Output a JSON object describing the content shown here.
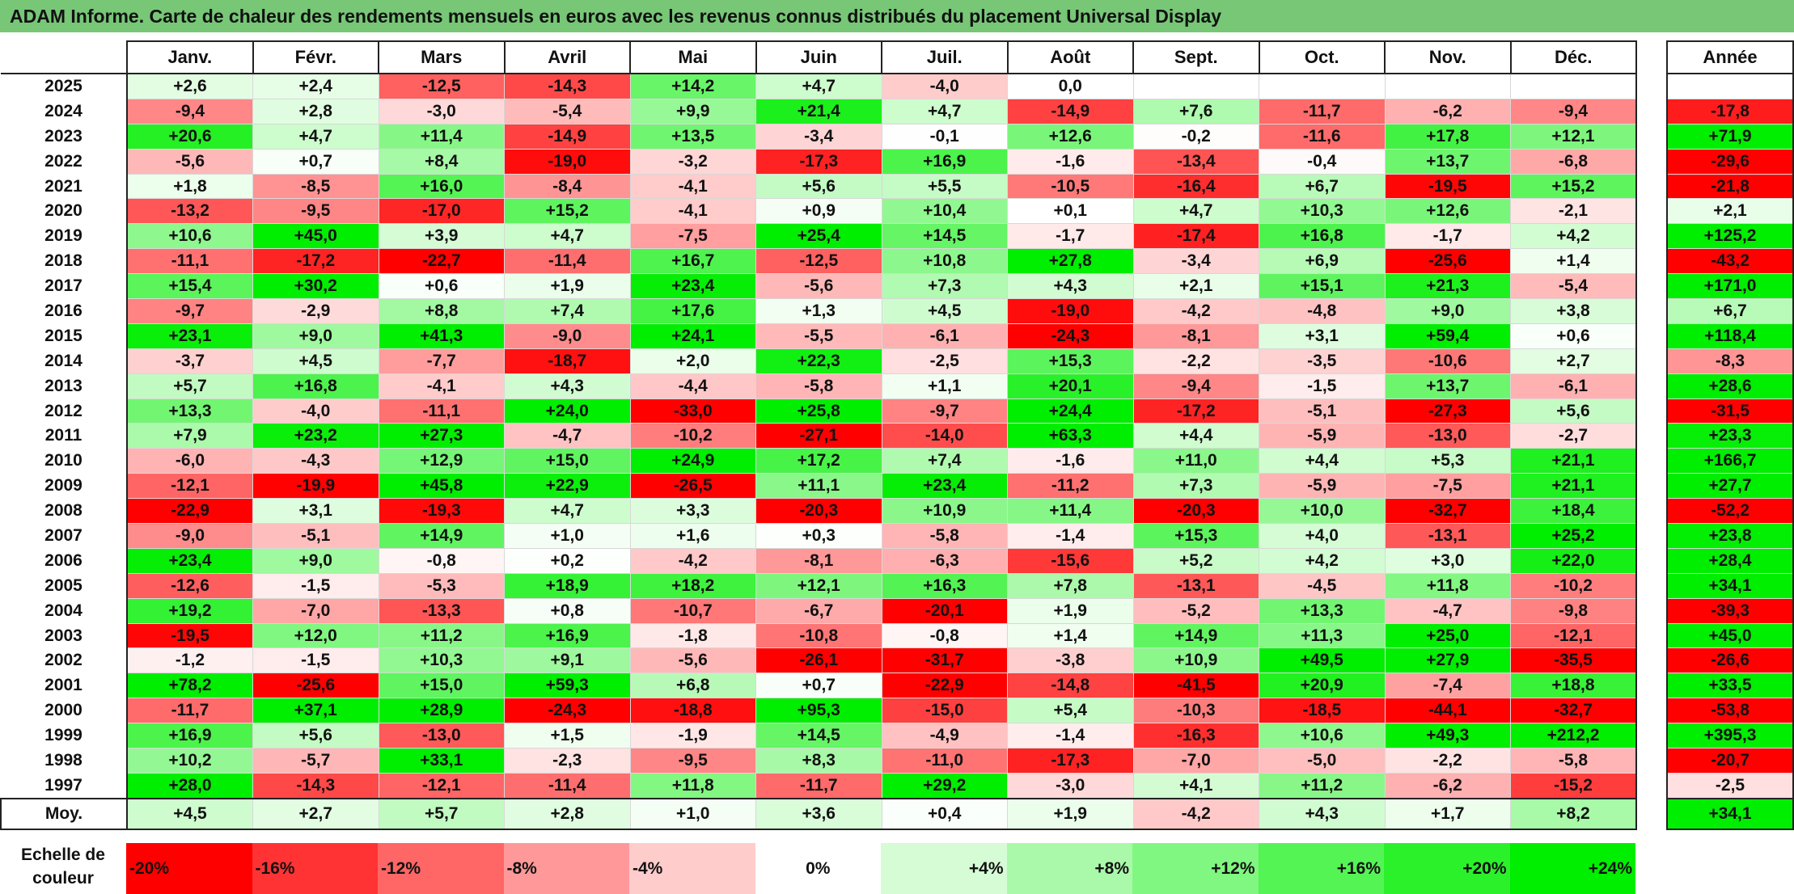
{
  "title": "ADAM Informe. Carte de chaleur des rendements mensuels en euros avec les revenus connus distribués du placement Universal Display",
  "year_header": "Année",
  "avg_label": "Moy.",
  "legend_label": "Echelle de couleur",
  "legend": [
    "-20%",
    "-16%",
    "-12%",
    "-8%",
    "-4%",
    "0%",
    "+4%",
    "+8%",
    "+12%",
    "+16%",
    "+20%",
    "+24%"
  ],
  "colors": {
    "neg_max": "#ff0000",
    "zero": "#ffffff",
    "pos_max": "#00ee00",
    "title_bar": "#77c777"
  },
  "chart_data": {
    "type": "heatmap",
    "title": "ADAM Informe. Carte de chaleur des rendements mensuels en euros avec les revenus connus distribués du placement Universal Display",
    "months": [
      "Janv.",
      "Févr.",
      "Mars",
      "Avril",
      "Mai",
      "Juin",
      "Juil.",
      "Août",
      "Sept.",
      "Oct.",
      "Nov.",
      "Déc."
    ],
    "rows": [
      {
        "year": "2025",
        "values": [
          "+2,6",
          "+2,4",
          "-12,5",
          "-14,3",
          "+14,2",
          "+4,7",
          "-4,0",
          "0,0",
          "",
          "",
          "",
          ""
        ],
        "annual": ""
      },
      {
        "year": "2024",
        "values": [
          "-9,4",
          "+2,8",
          "-3,0",
          "-5,4",
          "+9,9",
          "+21,4",
          "+4,7",
          "-14,9",
          "+7,6",
          "-11,7",
          "-6,2",
          "-9,4"
        ],
        "annual": "-17,8"
      },
      {
        "year": "2023",
        "values": [
          "+20,6",
          "+4,7",
          "+11,4",
          "-14,9",
          "+13,5",
          "-3,4",
          "-0,1",
          "+12,6",
          "-0,2",
          "-11,6",
          "+17,8",
          "+12,1"
        ],
        "annual": "+71,9"
      },
      {
        "year": "2022",
        "values": [
          "-5,6",
          "+0,7",
          "+8,4",
          "-19,0",
          "-3,2",
          "-17,3",
          "+16,9",
          "-1,6",
          "-13,4",
          "-0,4",
          "+13,7",
          "-6,8"
        ],
        "annual": "-29,6"
      },
      {
        "year": "2021",
        "values": [
          "+1,8",
          "-8,5",
          "+16,0",
          "-8,4",
          "-4,1",
          "+5,6",
          "+5,5",
          "-10,5",
          "-16,4",
          "+6,7",
          "-19,5",
          "+15,2"
        ],
        "annual": "-21,8"
      },
      {
        "year": "2020",
        "values": [
          "-13,2",
          "-9,5",
          "-17,0",
          "+15,2",
          "-4,1",
          "+0,9",
          "+10,4",
          "+0,1",
          "+4,7",
          "+10,3",
          "+12,6",
          "-2,1"
        ],
        "annual": "+2,1"
      },
      {
        "year": "2019",
        "values": [
          "+10,6",
          "+45,0",
          "+3,9",
          "+4,7",
          "-7,5",
          "+25,4",
          "+14,5",
          "-1,7",
          "-17,4",
          "+16,8",
          "-1,7",
          "+4,2"
        ],
        "annual": "+125,2"
      },
      {
        "year": "2018",
        "values": [
          "-11,1",
          "-17,2",
          "-22,7",
          "-11,4",
          "+16,7",
          "-12,5",
          "+10,8",
          "+27,8",
          "-3,4",
          "+6,9",
          "-25,6",
          "+1,4"
        ],
        "annual": "-43,2"
      },
      {
        "year": "2017",
        "values": [
          "+15,4",
          "+30,2",
          "+0,6",
          "+1,9",
          "+23,4",
          "-5,6",
          "+7,3",
          "+4,3",
          "+2,1",
          "+15,1",
          "+21,3",
          "-5,4"
        ],
        "annual": "+171,0"
      },
      {
        "year": "2016",
        "values": [
          "-9,7",
          "-2,9",
          "+8,8",
          "+7,4",
          "+17,6",
          "+1,3",
          "+4,5",
          "-19,0",
          "-4,2",
          "-4,8",
          "+9,0",
          "+3,8"
        ],
        "annual": "+6,7"
      },
      {
        "year": "2015",
        "values": [
          "+23,1",
          "+9,0",
          "+41,3",
          "-9,0",
          "+24,1",
          "-5,5",
          "-6,1",
          "-24,3",
          "-8,1",
          "+3,1",
          "+59,4",
          "+0,6"
        ],
        "annual": "+118,4"
      },
      {
        "year": "2014",
        "values": [
          "-3,7",
          "+4,5",
          "-7,7",
          "-18,7",
          "+2,0",
          "+22,3",
          "-2,5",
          "+15,3",
          "-2,2",
          "-3,5",
          "-10,6",
          "+2,7"
        ],
        "annual": "-8,3"
      },
      {
        "year": "2013",
        "values": [
          "+5,7",
          "+16,8",
          "-4,1",
          "+4,3",
          "-4,4",
          "-5,8",
          "+1,1",
          "+20,1",
          "-9,4",
          "-1,5",
          "+13,7",
          "-6,1"
        ],
        "annual": "+28,6"
      },
      {
        "year": "2012",
        "values": [
          "+13,3",
          "-4,0",
          "-11,1",
          "+24,0",
          "-33,0",
          "+25,8",
          "-9,7",
          "+24,4",
          "-17,2",
          "-5,1",
          "-27,3",
          "+5,6"
        ],
        "annual": "-31,5"
      },
      {
        "year": "2011",
        "values": [
          "+7,9",
          "+23,2",
          "+27,3",
          "-4,7",
          "-10,2",
          "-27,1",
          "-14,0",
          "+63,3",
          "+4,4",
          "-5,9",
          "-13,0",
          "-2,7"
        ],
        "annual": "+23,3"
      },
      {
        "year": "2010",
        "values": [
          "-6,0",
          "-4,3",
          "+12,9",
          "+15,0",
          "+24,9",
          "+17,2",
          "+7,4",
          "-1,6",
          "+11,0",
          "+4,4",
          "+5,3",
          "+21,1"
        ],
        "annual": "+166,7"
      },
      {
        "year": "2009",
        "values": [
          "-12,1",
          "-19,9",
          "+45,8",
          "+22,9",
          "-26,5",
          "+11,1",
          "+23,4",
          "-11,2",
          "+7,3",
          "-5,9",
          "-7,5",
          "+21,1"
        ],
        "annual": "+27,7"
      },
      {
        "year": "2008",
        "values": [
          "-22,9",
          "+3,1",
          "-19,3",
          "+4,7",
          "+3,3",
          "-20,3",
          "+10,9",
          "+11,4",
          "-20,3",
          "+10,0",
          "-32,7",
          "+18,4"
        ],
        "annual": "-52,2"
      },
      {
        "year": "2007",
        "values": [
          "-9,0",
          "-5,1",
          "+14,9",
          "+1,0",
          "+1,6",
          "+0,3",
          "-5,8",
          "-1,4",
          "+15,3",
          "+4,0",
          "-13,1",
          "+25,2"
        ],
        "annual": "+23,8"
      },
      {
        "year": "2006",
        "values": [
          "+23,4",
          "+9,0",
          "-0,8",
          "+0,2",
          "-4,2",
          "-8,1",
          "-6,3",
          "-15,6",
          "+5,2",
          "+4,2",
          "+3,0",
          "+22,0"
        ],
        "annual": "+28,4"
      },
      {
        "year": "2005",
        "values": [
          "-12,6",
          "-1,5",
          "-5,3",
          "+18,9",
          "+18,2",
          "+12,1",
          "+16,3",
          "+7,8",
          "-13,1",
          "-4,5",
          "+11,8",
          "-10,2"
        ],
        "annual": "+34,1"
      },
      {
        "year": "2004",
        "values": [
          "+19,2",
          "-7,0",
          "-13,3",
          "+0,8",
          "-10,7",
          "-6,7",
          "-20,1",
          "+1,9",
          "-5,2",
          "+13,3",
          "-4,7",
          "-9,8"
        ],
        "annual": "-39,3"
      },
      {
        "year": "2003",
        "values": [
          "-19,5",
          "+12,0",
          "+11,2",
          "+16,9",
          "-1,8",
          "-10,8",
          "-0,8",
          "+1,4",
          "+14,9",
          "+11,3",
          "+25,0",
          "-12,1"
        ],
        "annual": "+45,0"
      },
      {
        "year": "2002",
        "values": [
          "-1,2",
          "-1,5",
          "+10,3",
          "+9,1",
          "-5,6",
          "-26,1",
          "-31,7",
          "-3,8",
          "+10,9",
          "+49,5",
          "+27,9",
          "-35,5"
        ],
        "annual": "-26,6"
      },
      {
        "year": "2001",
        "values": [
          "+78,2",
          "-25,6",
          "+15,0",
          "+59,3",
          "+6,8",
          "+0,7",
          "-22,9",
          "-14,8",
          "-41,5",
          "+20,9",
          "-7,4",
          "+18,8"
        ],
        "annual": "+33,5"
      },
      {
        "year": "2000",
        "values": [
          "-11,7",
          "+37,1",
          "+28,9",
          "-24,3",
          "-18,8",
          "+95,3",
          "-15,0",
          "+5,4",
          "-10,3",
          "-18,5",
          "-44,1",
          "-32,7"
        ],
        "annual": "-53,8"
      },
      {
        "year": "1999",
        "values": [
          "+16,9",
          "+5,6",
          "-13,0",
          "+1,5",
          "-1,9",
          "+14,5",
          "-4,9",
          "-1,4",
          "-16,3",
          "+10,6",
          "+49,3",
          "+212,2"
        ],
        "annual": "+395,3"
      },
      {
        "year": "1998",
        "values": [
          "+10,2",
          "-5,7",
          "+33,1",
          "-2,3",
          "-9,5",
          "+8,3",
          "-11,0",
          "-17,3",
          "-7,0",
          "-5,0",
          "-2,2",
          "-5,8"
        ],
        "annual": "-20,7"
      },
      {
        "year": "1997",
        "values": [
          "+28,0",
          "-14,3",
          "-12,1",
          "-11,4",
          "+11,8",
          "-11,7",
          "+29,2",
          "-3,0",
          "+4,1",
          "+11,2",
          "-6,2",
          "-15,2"
        ],
        "annual": "-2,5"
      }
    ],
    "averages": [
      "+4,5",
      "+2,7",
      "+5,7",
      "+2,8",
      "+1,0",
      "+3,6",
      "+0,4",
      "+1,9",
      "-4,2",
      "+4,3",
      "+1,7",
      "+8,2"
    ],
    "average_annual": "+34,1",
    "color_scale": {
      "min": -20,
      "max": 24
    }
  }
}
